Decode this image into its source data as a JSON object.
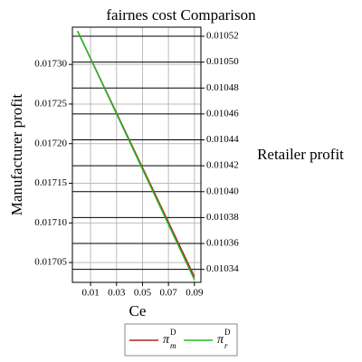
{
  "chart_data": {
    "type": "line",
    "title": "fairnes cost Comparison",
    "x_label": "Ce",
    "y_label": "Manufacturer profit",
    "y2_label": "Retailer profit",
    "x": [
      0,
      0.09
    ],
    "series": [
      {
        "name": "π",
        "sub": "m",
        "sup": "D",
        "color": "#b22222",
        "values": [
          0.017342,
          0.017032
        ]
      },
      {
        "name": "π",
        "sub": "r",
        "sup": "D",
        "color": "#22bb22",
        "axis": "y2",
        "values": [
          0.010524,
          0.010332
        ]
      }
    ],
    "xlim": [
      -0.004,
      0.095
    ],
    "xticks": [
      0.01,
      0.03,
      0.05,
      0.07,
      0.09
    ],
    "ylim": [
      0.017025,
      0.017347
    ],
    "yticks": [
      {
        "value": 0.01705,
        "label": "0.01705"
      },
      {
        "value": 0.0171,
        "label": "0.01710"
      },
      {
        "value": 0.01715,
        "label": "0.01715"
      },
      {
        "value": 0.0172,
        "label": "0.01720"
      },
      {
        "value": 0.01725,
        "label": "0.01725"
      },
      {
        "value": 0.0173,
        "label": "0.01730"
      }
    ],
    "y2lim": [
      0.01033,
      0.010527
    ],
    "y2ticks": [
      0.01034,
      0.01036,
      0.01038,
      {
        "value": 0.0104,
        "label": "0.01040"
      },
      0.01042,
      0.01044,
      0.01046,
      0.01048,
      {
        "value": 0.0105,
        "label": "0.01050"
      },
      0.01052
    ],
    "grid": true
  }
}
